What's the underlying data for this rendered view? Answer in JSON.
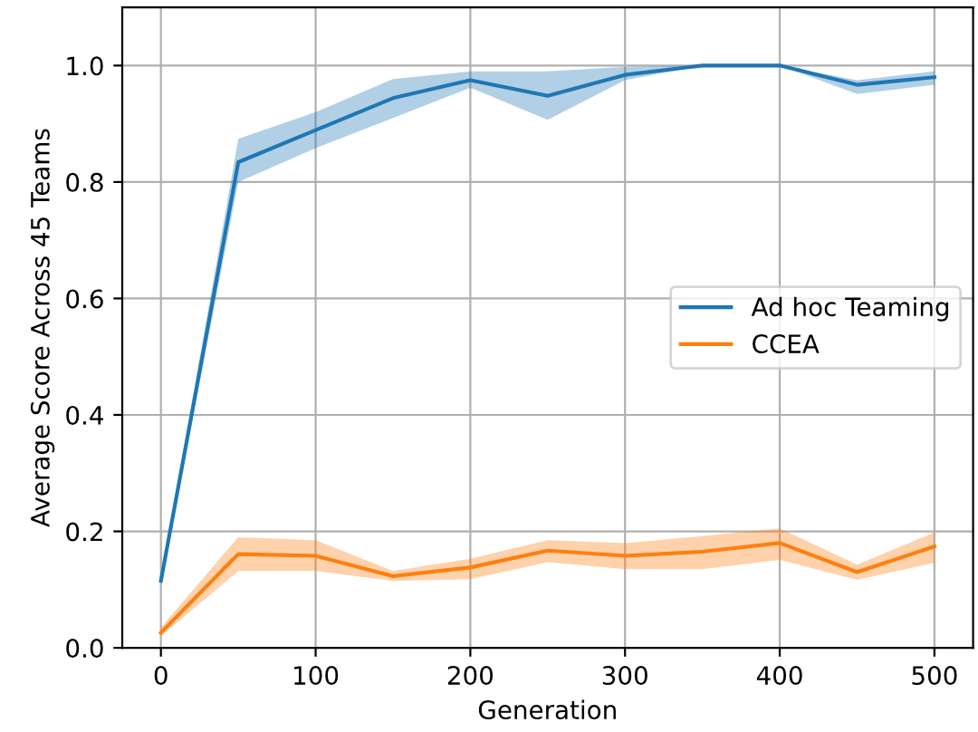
{
  "chart_data": {
    "type": "line",
    "xlabel": "Generation",
    "ylabel": "Average Score Across 45 Teams",
    "x": [
      0,
      50,
      100,
      150,
      200,
      250,
      300,
      350,
      400,
      450,
      500
    ],
    "series": [
      {
        "name": "Ad hoc Teaming",
        "color": "#1f77b4",
        "values": [
          0.115,
          0.834,
          0.889,
          0.944,
          0.975,
          0.948,
          0.984,
          1.0,
          1.0,
          0.967,
          0.98
        ],
        "lower": [
          0.11,
          0.8,
          0.858,
          0.91,
          0.962,
          0.907,
          0.975,
          1.0,
          1.0,
          0.951,
          0.967
        ],
        "upper": [
          0.12,
          0.874,
          0.92,
          0.977,
          0.99,
          0.99,
          0.998,
          1.0,
          1.0,
          0.975,
          0.99
        ]
      },
      {
        "name": "CCEA",
        "color": "#ff7f0e",
        "values": [
          0.026,
          0.161,
          0.158,
          0.123,
          0.138,
          0.167,
          0.158,
          0.165,
          0.18,
          0.13,
          0.174
        ],
        "lower": [
          0.02,
          0.132,
          0.132,
          0.115,
          0.118,
          0.147,
          0.135,
          0.135,
          0.151,
          0.117,
          0.146
        ],
        "upper": [
          0.035,
          0.19,
          0.185,
          0.132,
          0.153,
          0.185,
          0.18,
          0.192,
          0.205,
          0.143,
          0.198
        ]
      }
    ],
    "xlim": [
      -25,
      525
    ],
    "ylim": [
      0,
      1.1
    ],
    "xticks": [
      0,
      100,
      200,
      300,
      400,
      500
    ],
    "yticks": [
      {
        "value": 0,
        "label": "0.0"
      },
      0.2,
      0.4,
      0.6,
      0.8,
      {
        "value": 1,
        "label": "1.0"
      }
    ],
    "grid": true,
    "legend": "center right",
    "marker": "none",
    "line_style": "solid"
  }
}
